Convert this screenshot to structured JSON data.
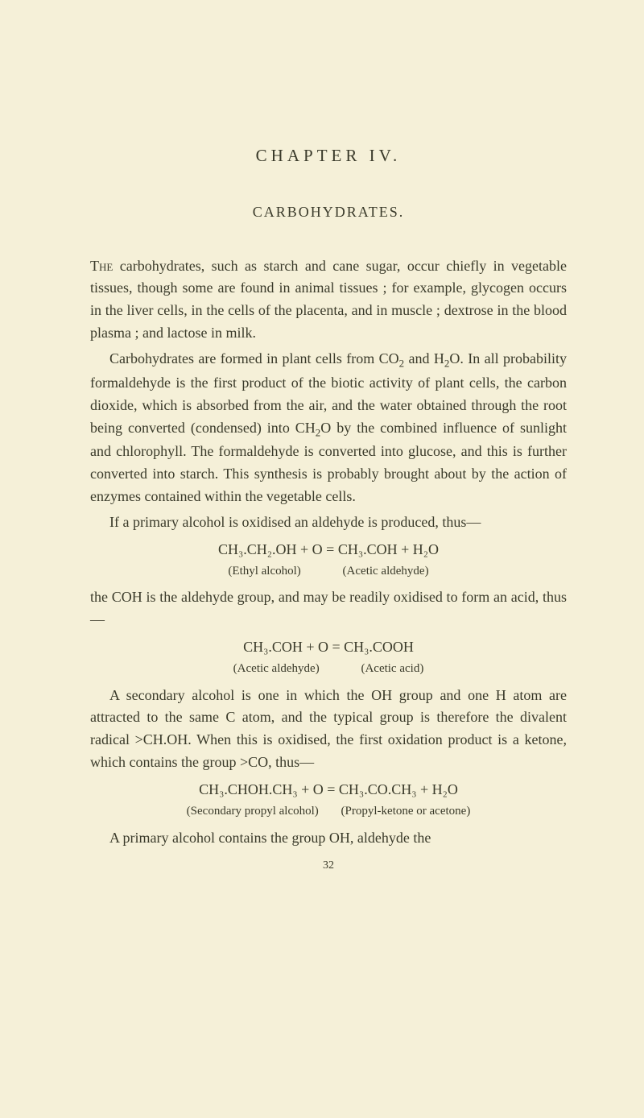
{
  "chapter": "CHAPTER IV.",
  "section": "CARBOHYDRATES.",
  "p1_lead": "The",
  "p1": " carbohydrates, such as starch and cane sugar, occur chiefly in vegetable tissues, though some are found in animal tissues ; for example, glycogen occurs in the liver cells, in the cells of the placenta, and in muscle ; dextrose in the blood plasma ; and lactose in milk.",
  "p2a": "Carbohydrates are formed in plant cells from CO",
  "p2b": " and H",
  "p2c": "O. In all probability formaldehyde is the first product of the biotic activity of plant cells, the carbon dioxide, which is absorbed from the air, and the water obtained through the root being converted (condensed) into CH",
  "p2d": "O by the com­bined influence of sunlight and chlorophyll. The formalde­hyde is converted into glucose, and this is further converted into starch. This synthesis is probably brought about by the action of enzymes contained within the vegetable cells.",
  "p3": "If a primary alcohol is oxidised an aldehyde is produced, thus—",
  "eq1": "CH₃.CH₂.OH + O = CH₃.COH + H₂O",
  "eq1_label_left": "(Ethyl alcohol)",
  "eq1_label_right": "(Acetic aldehyde)",
  "p4": "the COH is the aldehyde group, and may be readily oxidised to form an acid, thus—",
  "eq2": "CH₃.COH + O = CH₃.COOH",
  "eq2_label_left": "(Acetic aldehyde)",
  "eq2_label_right": "(Acetic acid)",
  "p5": "A secondary alcohol is one in which the OH group and one H atom are attracted to the same C atom, and the typical group is therefore the divalent radical >CH.OH. When this is oxidised, the first oxidation product is a ketone, which contains the group >CO, thus—",
  "eq3": "CH₃.CHOH.CH₃ + O = CH₃.CO.CH₃ + H₂O",
  "eq3_label_left": "(Secondary propyl alcohol)",
  "eq3_label_right": "(Propyl-ketone or acetone)",
  "p6": "A primary alcohol contains the group OH, aldehyde the",
  "page_number": "32",
  "sub2": "2"
}
